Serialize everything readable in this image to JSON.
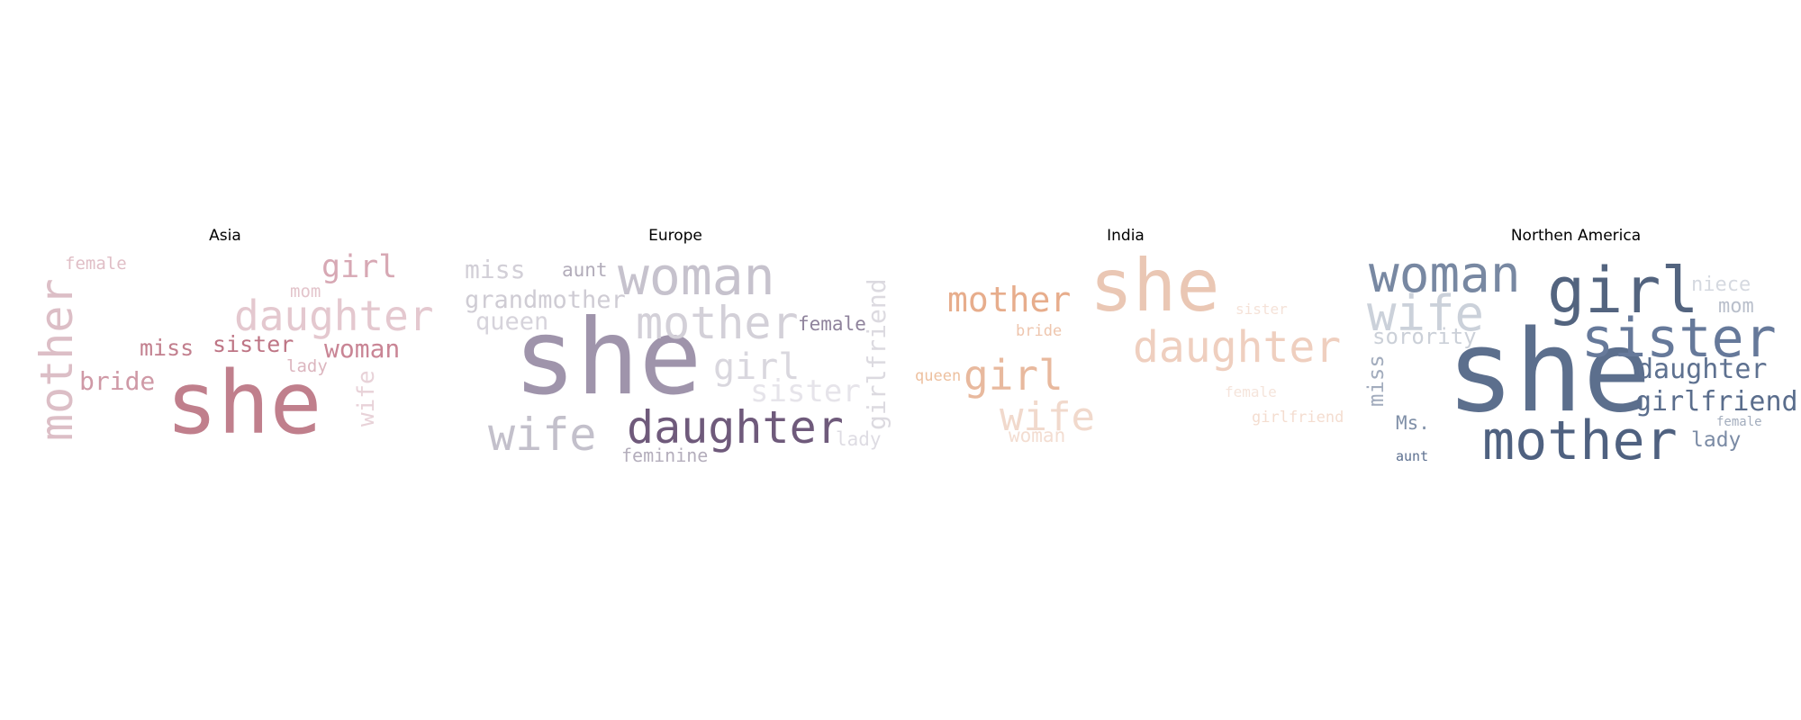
{
  "panels": [
    {
      "title": "Asia",
      "words": [
        {
          "text": "she",
          "color": "#c07f8c"
        },
        {
          "text": "mother",
          "color": "#dcbec6"
        },
        {
          "text": "daughter",
          "color": "#e4c8cf"
        },
        {
          "text": "girl",
          "color": "#d7a8b4"
        },
        {
          "text": "woman",
          "color": "#c98595"
        },
        {
          "text": "sister",
          "color": "#be7585"
        },
        {
          "text": "miss",
          "color": "#c27f8e"
        },
        {
          "text": "bride",
          "color": "#cf99a6"
        },
        {
          "text": "female",
          "color": "#e0bec6"
        },
        {
          "text": "mom",
          "color": "#e3c4cb"
        },
        {
          "text": "lady",
          "color": "#dcb6bf"
        },
        {
          "text": "wife",
          "color": "#e8d2d8"
        }
      ]
    },
    {
      "title": "Europe",
      "words": [
        {
          "text": "she",
          "color": "#9f94ab"
        },
        {
          "text": "woman",
          "color": "#c6c2cd"
        },
        {
          "text": "mother",
          "color": "#d3d0d8"
        },
        {
          "text": "daughter",
          "color": "#6f5a7b"
        },
        {
          "text": "wife",
          "color": "#c3c0cb"
        },
        {
          "text": "girl",
          "color": "#d9d7de"
        },
        {
          "text": "sister",
          "color": "#e6e4ea"
        },
        {
          "text": "miss",
          "color": "#d2cfd7"
        },
        {
          "text": "aunt",
          "color": "#b2acba"
        },
        {
          "text": "grandmother",
          "color": "#cfccd4"
        },
        {
          "text": "queen",
          "color": "#d6d3db"
        },
        {
          "text": "female",
          "color": "#8f839c"
        },
        {
          "text": "girlfriend",
          "color": "#dcdae0"
        },
        {
          "text": "lady",
          "color": "#dedce3"
        },
        {
          "text": "feminine",
          "color": "#b4aebc"
        }
      ]
    },
    {
      "title": "India",
      "words": [
        {
          "text": "she",
          "color": "#eac7b4"
        },
        {
          "text": "mother",
          "color": "#e7ad8c"
        },
        {
          "text": "daughter",
          "color": "#efcfbf"
        },
        {
          "text": "girl",
          "color": "#e8b99e"
        },
        {
          "text": "wife",
          "color": "#f1d9cc"
        },
        {
          "text": "woman",
          "color": "#f3ddd1"
        },
        {
          "text": "bride",
          "color": "#eec5ad"
        },
        {
          "text": "queen",
          "color": "#edc09f"
        },
        {
          "text": "sister",
          "color": "#f5e2d8"
        },
        {
          "text": "female",
          "color": "#f5e4db"
        },
        {
          "text": "girlfriend",
          "color": "#f4ddd0"
        }
      ]
    },
    {
      "title": "Northen America",
      "words": [
        {
          "text": "she",
          "color": "#5c6f8d"
        },
        {
          "text": "girl",
          "color": "#53647f"
        },
        {
          "text": "woman",
          "color": "#7888a2"
        },
        {
          "text": "sister",
          "color": "#66799a"
        },
        {
          "text": "wife",
          "color": "#cbd1da"
        },
        {
          "text": "mother",
          "color": "#4f6180"
        },
        {
          "text": "daughter",
          "color": "#5e7190"
        },
        {
          "text": "girlfriend",
          "color": "#5a6d8c"
        },
        {
          "text": "niece",
          "color": "#d5d9e0"
        },
        {
          "text": "mom",
          "color": "#b9bfcb"
        },
        {
          "text": "sorority",
          "color": "#cbd0d8"
        },
        {
          "text": "miss",
          "color": "#a2acbd"
        },
        {
          "text": "Ms.",
          "color": "#8090a8"
        },
        {
          "text": "lady",
          "color": "#7b8ba5"
        },
        {
          "text": "female",
          "color": "#a3adbd"
        },
        {
          "text": "aunt",
          "color": "#5d7090"
        }
      ]
    }
  ]
}
